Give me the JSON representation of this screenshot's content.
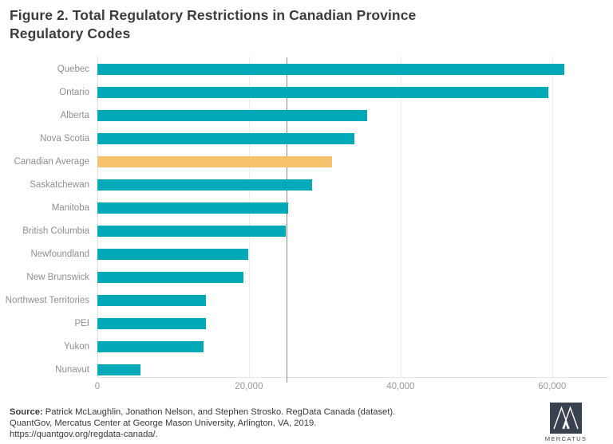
{
  "title": "Figure 2. Total Regulatory Restrictions in Canadian Province Regulatory Codes",
  "chart_data": {
    "type": "bar",
    "orientation": "horizontal",
    "title": "Figure 2. Total Regulatory Restrictions in Canadian Province Regulatory Codes",
    "xlabel": "",
    "ylabel": "",
    "categories": [
      "Quebec",
      "Ontario",
      "Alberta",
      "Nova Scotia",
      "Canadian Average",
      "Saskatchewan",
      "Manitoba",
      "British Columbia",
      "Newfoundland",
      "New Brunswick",
      "Northwest Territories",
      "PEI",
      "Yukon",
      "Nunavut"
    ],
    "values": [
      61600,
      59500,
      35600,
      33900,
      31000,
      28300,
      25200,
      24800,
      19900,
      19300,
      14300,
      14300,
      14000,
      5700
    ],
    "highlight_category": "Canadian Average",
    "highlight_index": 4,
    "xlim": [
      0,
      67400
    ],
    "x_ticks": [
      {
        "value": 0,
        "label": "0"
      },
      {
        "value": 20000,
        "label": "20,000"
      },
      {
        "value": 40000,
        "label": "40,000"
      },
      {
        "value": 60000,
        "label": "60,000"
      }
    ],
    "reference_line_value": 25000,
    "grid": "vertical-light-gridlines",
    "legend": "none",
    "colors": {
      "bar": "#00a9b6",
      "highlight_bar": "#f6c26e",
      "reference_line": "#8a8a8a",
      "gridline": "#ededed",
      "axis_line": "#e2e2e2",
      "category_label": "#8f8f8f",
      "tick_label": "#9b9b9b",
      "title_text": "#3d3d3d"
    }
  },
  "footer": {
    "source_label": "Source:",
    "source_text": " Patrick McLaughlin, Jonathon Nelson, and Stephen Strosko. RegData Canada (dataset).",
    "line2": "QuantGov, Mercatus Center at George Mason University, Arlington, VA, 2019.",
    "line3": "https://quantgov.org/regdata-canada/."
  },
  "logo": {
    "caption": "MERCATUS",
    "mark": "mercatus-m-monogram",
    "square_color": "#3a4250"
  }
}
